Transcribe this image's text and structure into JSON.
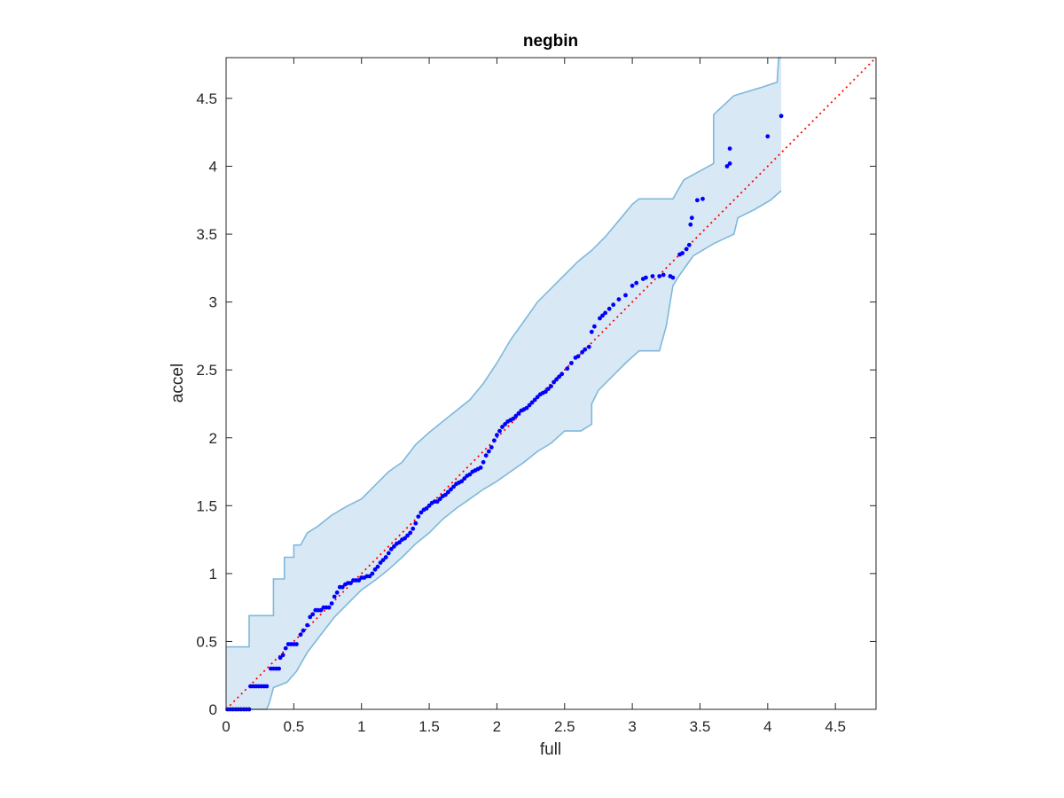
{
  "chart_data": {
    "type": "scatter",
    "title": "negbin",
    "xlabel": "full",
    "ylabel": "accel",
    "xlim": [
      0,
      4.8
    ],
    "ylim": [
      0,
      4.8
    ],
    "xticks": [
      0,
      0.5,
      1,
      1.5,
      2,
      2.5,
      3,
      3.5,
      4,
      4.5
    ],
    "yticks": [
      0,
      0.5,
      1,
      1.5,
      2,
      2.5,
      3,
      3.5,
      4,
      4.5
    ],
    "grid": false,
    "box": true,
    "colors": {
      "band_fill": "#d9e8f5",
      "band_edge": "#7fb8da",
      "points": "#0000ff",
      "reference_line": "#ff0000",
      "axes": "#262626"
    },
    "reference_line": {
      "style": "dotted",
      "from": [
        0,
        0
      ],
      "to": [
        4.8,
        4.8
      ]
    },
    "band_upper": [
      [
        0,
        0.46
      ],
      [
        0.17,
        0.46
      ],
      [
        0.17,
        0.69
      ],
      [
        0.35,
        0.69
      ],
      [
        0.35,
        0.96
      ],
      [
        0.43,
        0.96
      ],
      [
        0.43,
        1.12
      ],
      [
        0.5,
        1.12
      ],
      [
        0.5,
        1.21
      ],
      [
        0.55,
        1.21
      ],
      [
        0.6,
        1.3
      ],
      [
        0.68,
        1.35
      ],
      [
        0.78,
        1.43
      ],
      [
        0.9,
        1.5
      ],
      [
        1.0,
        1.55
      ],
      [
        1.1,
        1.65
      ],
      [
        1.2,
        1.75
      ],
      [
        1.3,
        1.82
      ],
      [
        1.4,
        1.95
      ],
      [
        1.5,
        2.04
      ],
      [
        1.6,
        2.12
      ],
      [
        1.7,
        2.2
      ],
      [
        1.8,
        2.28
      ],
      [
        1.9,
        2.4
      ],
      [
        2.0,
        2.55
      ],
      [
        2.1,
        2.72
      ],
      [
        2.2,
        2.86
      ],
      [
        2.3,
        3.0
      ],
      [
        2.4,
        3.1
      ],
      [
        2.5,
        3.2
      ],
      [
        2.6,
        3.3
      ],
      [
        2.7,
        3.38
      ],
      [
        2.8,
        3.48
      ],
      [
        2.9,
        3.6
      ],
      [
        3.0,
        3.72
      ],
      [
        3.05,
        3.76
      ],
      [
        3.3,
        3.76
      ],
      [
        3.38,
        3.9
      ],
      [
        3.6,
        4.02
      ],
      [
        3.6,
        4.38
      ],
      [
        3.75,
        4.52
      ],
      [
        3.95,
        4.58
      ],
      [
        4.07,
        4.62
      ],
      [
        4.08,
        4.8
      ],
      [
        4.1,
        4.8
      ]
    ],
    "band_lower": [
      [
        4.1,
        3.82
      ],
      [
        4.02,
        3.75
      ],
      [
        3.9,
        3.68
      ],
      [
        3.78,
        3.62
      ],
      [
        3.75,
        3.5
      ],
      [
        3.6,
        3.43
      ],
      [
        3.45,
        3.34
      ],
      [
        3.35,
        3.2
      ],
      [
        3.3,
        3.12
      ],
      [
        3.25,
        2.82
      ],
      [
        3.2,
        2.64
      ],
      [
        3.05,
        2.64
      ],
      [
        2.95,
        2.55
      ],
      [
        2.85,
        2.45
      ],
      [
        2.75,
        2.35
      ],
      [
        2.7,
        2.25
      ],
      [
        2.7,
        2.1
      ],
      [
        2.62,
        2.05
      ],
      [
        2.5,
        2.05
      ],
      [
        2.4,
        1.96
      ],
      [
        2.3,
        1.9
      ],
      [
        2.2,
        1.82
      ],
      [
        2.1,
        1.75
      ],
      [
        2.0,
        1.68
      ],
      [
        1.9,
        1.62
      ],
      [
        1.8,
        1.55
      ],
      [
        1.7,
        1.48
      ],
      [
        1.6,
        1.4
      ],
      [
        1.5,
        1.3
      ],
      [
        1.4,
        1.22
      ],
      [
        1.3,
        1.12
      ],
      [
        1.2,
        1.03
      ],
      [
        1.1,
        0.95
      ],
      [
        1.0,
        0.88
      ],
      [
        0.9,
        0.78
      ],
      [
        0.8,
        0.68
      ],
      [
        0.7,
        0.55
      ],
      [
        0.6,
        0.42
      ],
      [
        0.52,
        0.28
      ],
      [
        0.45,
        0.2
      ],
      [
        0.35,
        0.16
      ],
      [
        0.32,
        0.05
      ],
      [
        0.3,
        0.0
      ],
      [
        0,
        0.0
      ]
    ],
    "x": [
      0.01,
      0.03,
      0.05,
      0.07,
      0.09,
      0.11,
      0.13,
      0.15,
      0.17,
      0.18,
      0.2,
      0.22,
      0.24,
      0.26,
      0.28,
      0.3,
      0.33,
      0.35,
      0.37,
      0.39,
      0.4,
      0.42,
      0.44,
      0.46,
      0.48,
      0.5,
      0.52,
      0.55,
      0.57,
      0.6,
      0.62,
      0.64,
      0.66,
      0.68,
      0.7,
      0.72,
      0.74,
      0.76,
      0.78,
      0.8,
      0.82,
      0.84,
      0.86,
      0.88,
      0.9,
      0.92,
      0.94,
      0.96,
      0.98,
      1.0,
      1.02,
      1.04,
      1.06,
      1.08,
      1.1,
      1.12,
      1.14,
      1.16,
      1.18,
      1.2,
      1.22,
      1.24,
      1.26,
      1.28,
      1.3,
      1.32,
      1.34,
      1.36,
      1.38,
      1.4,
      1.42,
      1.44,
      1.46,
      1.48,
      1.5,
      1.52,
      1.54,
      1.56,
      1.58,
      1.6,
      1.62,
      1.64,
      1.66,
      1.68,
      1.7,
      1.72,
      1.74,
      1.76,
      1.78,
      1.8,
      1.82,
      1.84,
      1.86,
      1.88,
      1.9,
      1.92,
      1.94,
      1.96,
      1.98,
      2.0,
      2.02,
      2.04,
      2.06,
      2.08,
      2.1,
      2.12,
      2.14,
      2.16,
      2.18,
      2.2,
      2.22,
      2.24,
      2.26,
      2.28,
      2.3,
      2.32,
      2.34,
      2.36,
      2.38,
      2.4,
      2.42,
      2.44,
      2.46,
      2.48,
      2.52,
      2.55,
      2.58,
      2.6,
      2.63,
      2.65,
      2.68,
      2.7,
      2.72,
      2.76,
      2.78,
      2.8,
      2.83,
      2.86,
      2.9,
      2.95,
      3.0,
      3.03,
      3.08,
      3.1,
      3.15,
      3.2,
      3.23,
      3.28,
      3.3,
      3.35,
      3.37,
      3.4,
      3.42,
      3.43,
      3.44,
      3.48,
      3.52,
      3.7,
      3.72,
      3.72,
      4.0,
      4.1
    ],
    "y": [
      0.0,
      0.0,
      0.0,
      0.0,
      0.0,
      0.0,
      0.0,
      0.0,
      0.0,
      0.17,
      0.17,
      0.17,
      0.17,
      0.17,
      0.17,
      0.17,
      0.3,
      0.3,
      0.3,
      0.3,
      0.38,
      0.4,
      0.45,
      0.48,
      0.48,
      0.48,
      0.48,
      0.55,
      0.58,
      0.62,
      0.68,
      0.7,
      0.73,
      0.73,
      0.73,
      0.75,
      0.75,
      0.75,
      0.78,
      0.83,
      0.86,
      0.9,
      0.9,
      0.92,
      0.93,
      0.93,
      0.95,
      0.95,
      0.95,
      0.97,
      0.97,
      0.98,
      0.98,
      1.0,
      1.03,
      1.05,
      1.08,
      1.1,
      1.12,
      1.15,
      1.18,
      1.2,
      1.22,
      1.23,
      1.25,
      1.26,
      1.28,
      1.3,
      1.33,
      1.37,
      1.42,
      1.45,
      1.47,
      1.48,
      1.5,
      1.52,
      1.53,
      1.53,
      1.55,
      1.57,
      1.58,
      1.6,
      1.62,
      1.64,
      1.66,
      1.67,
      1.68,
      1.7,
      1.72,
      1.73,
      1.75,
      1.76,
      1.77,
      1.78,
      1.82,
      1.87,
      1.9,
      1.93,
      1.98,
      2.02,
      2.05,
      2.08,
      2.1,
      2.12,
      2.13,
      2.14,
      2.16,
      2.18,
      2.2,
      2.21,
      2.22,
      2.24,
      2.26,
      2.28,
      2.3,
      2.32,
      2.33,
      2.34,
      2.36,
      2.38,
      2.41,
      2.43,
      2.45,
      2.47,
      2.51,
      2.55,
      2.59,
      2.6,
      2.63,
      2.65,
      2.67,
      2.78,
      2.82,
      2.88,
      2.9,
      2.92,
      2.95,
      2.98,
      3.02,
      3.05,
      3.12,
      3.14,
      3.17,
      3.18,
      3.19,
      3.19,
      3.2,
      3.19,
      3.18,
      3.35,
      3.36,
      3.39,
      3.42,
      3.57,
      3.62,
      3.75,
      3.76,
      4.0,
      4.02,
      4.13,
      4.22,
      4.37
    ]
  }
}
